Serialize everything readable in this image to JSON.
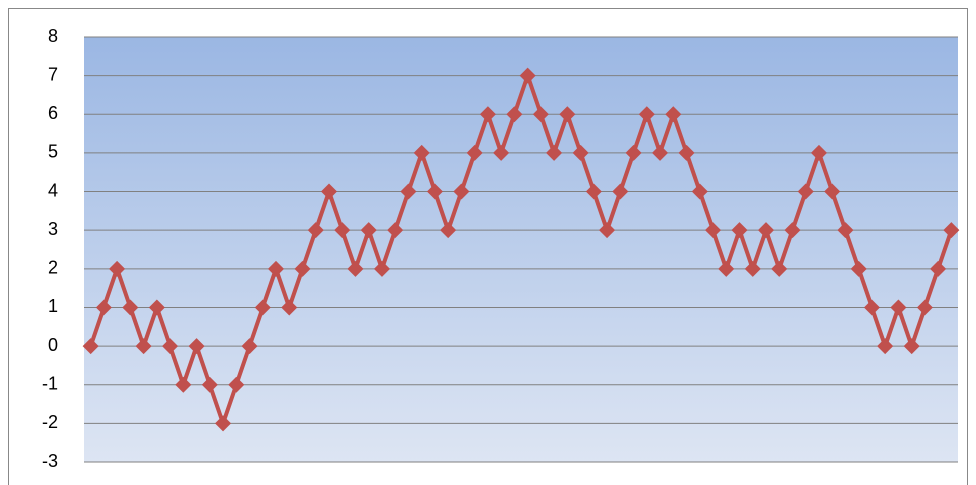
{
  "chart_data": {
    "type": "line",
    "values": [
      0,
      1,
      2,
      1,
      0,
      1,
      0,
      -1,
      0,
      -1,
      -2,
      -1,
      0,
      1,
      2,
      1,
      2,
      3,
      4,
      3,
      2,
      3,
      2,
      3,
      4,
      5,
      4,
      3,
      4,
      5,
      6,
      5,
      6,
      7,
      6,
      5,
      6,
      5,
      4,
      3,
      4,
      5,
      6,
      5,
      6,
      5,
      4,
      3,
      2,
      3,
      2,
      3,
      2,
      3,
      4,
      5,
      4,
      3,
      2,
      1,
      0,
      1,
      0,
      1,
      2,
      3
    ],
    "color": "#c0504d",
    "ylim": [
      -3,
      8
    ],
    "yticks": [
      -3,
      -2,
      -1,
      0,
      1,
      2,
      3,
      4,
      5,
      6,
      7,
      8
    ],
    "grid": true
  }
}
